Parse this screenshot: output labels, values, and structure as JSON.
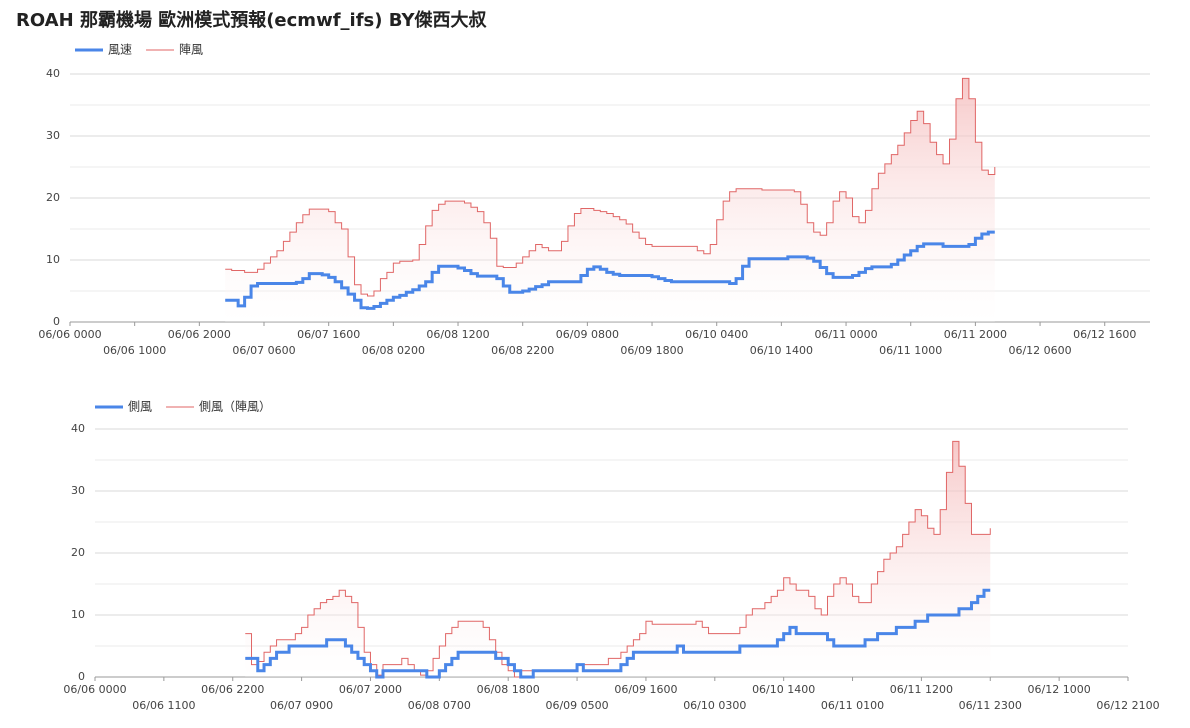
{
  "chart_data": [
    {
      "type": "step",
      "title": "ROAH 那霸機場 歐洲模式預報(ecmwf_ifs) BY傑西大叔",
      "x": [
        "06/07 0000",
        "06/07 0100",
        "06/07 0200",
        "06/07 0300",
        "06/07 0400",
        "06/07 0500",
        "06/07 0600",
        "06/07 0700",
        "06/07 0800",
        "06/07 0900",
        "06/07 1000",
        "06/07 1100",
        "06/07 1200",
        "06/07 1300",
        "06/07 1400",
        "06/07 1500",
        "06/07 1600",
        "06/07 1700",
        "06/07 1800",
        "06/07 1900",
        "06/07 2000",
        "06/07 2100",
        "06/07 2200",
        "06/07 2300",
        "06/08 0000",
        "06/08 0100",
        "06/08 0200",
        "06/08 0300",
        "06/08 0400",
        "06/08 0500",
        "06/08 0600",
        "06/08 0700",
        "06/08 0800",
        "06/08 0900",
        "06/08 1000",
        "06/08 1100",
        "06/08 1200",
        "06/08 1300",
        "06/08 1400",
        "06/08 1500",
        "06/08 1600",
        "06/08 1700",
        "06/08 1800",
        "06/08 1900",
        "06/08 2000",
        "06/08 2100",
        "06/08 2200",
        "06/08 2300",
        "06/09 0000",
        "06/09 0100",
        "06/09 0200",
        "06/09 0300",
        "06/09 0400",
        "06/09 0500",
        "06/09 0600",
        "06/09 0700",
        "06/09 0800",
        "06/09 0900",
        "06/09 1000",
        "06/09 1100",
        "06/09 1200",
        "06/09 1300",
        "06/09 1400",
        "06/09 1500",
        "06/09 1600",
        "06/09 1700",
        "06/09 1800",
        "06/09 1900",
        "06/09 2000",
        "06/09 2100",
        "06/09 2200",
        "06/09 2300",
        "06/10 0000",
        "06/10 0100",
        "06/10 0200",
        "06/10 0300",
        "06/10 0400",
        "06/10 0500",
        "06/10 0600",
        "06/10 0700",
        "06/10 0800",
        "06/10 0900",
        "06/10 1000",
        "06/10 1100",
        "06/10 1200",
        "06/10 1300",
        "06/10 1400",
        "06/10 1500",
        "06/10 1600",
        "06/10 1700",
        "06/10 1800",
        "06/10 1900",
        "06/10 2000",
        "06/10 2100",
        "06/10 2200",
        "06/10 2300",
        "06/11 0000",
        "06/11 0100",
        "06/11 0200",
        "06/11 0300",
        "06/11 0400",
        "06/11 0500",
        "06/11 0600",
        "06/11 0700",
        "06/11 0800",
        "06/11 0900",
        "06/11 1000",
        "06/11 1100",
        "06/11 1200",
        "06/11 1300",
        "06/11 1400",
        "06/11 1500",
        "06/11 1600",
        "06/11 1700",
        "06/11 1800",
        "06/11 1900",
        "06/11 2000",
        "06/11 2100",
        "06/11 2200",
        "06/11 2300"
      ],
      "series": [
        {
          "name": "風速",
          "color": "#4a86e8",
          "values": [
            3.5,
            3.5,
            2.6,
            4,
            5.8,
            6.2,
            6.2,
            6.2,
            6.2,
            6.2,
            6.2,
            6.4,
            7,
            7.8,
            7.8,
            7.6,
            7.2,
            6.5,
            5.5,
            4.5,
            3.5,
            2.3,
            2.2,
            2.5,
            3,
            3.5,
            4,
            4.3,
            4.8,
            5.2,
            5.8,
            6.5,
            8,
            9,
            9,
            9,
            8.7,
            8.3,
            7.8,
            7.4,
            7.4,
            7.4,
            7,
            5.8,
            4.8,
            4.8,
            5,
            5.3,
            5.7,
            6,
            6.5,
            6.5,
            6.5,
            6.5,
            6.5,
            7.5,
            8.5,
            8.9,
            8.5,
            8,
            7.7,
            7.5,
            7.5,
            7.5,
            7.5,
            7.5,
            7.3,
            7,
            6.7,
            6.5,
            6.5,
            6.5,
            6.5,
            6.5,
            6.5,
            6.5,
            6.5,
            6.5,
            6.2,
            7,
            9,
            10.2,
            10.2,
            10.2,
            10.2,
            10.2,
            10.2,
            10.5,
            10.5,
            10.5,
            10.3,
            9.8,
            8.8,
            7.8,
            7.2,
            7.2,
            7.2,
            7.5,
            8,
            8.6,
            8.9,
            8.9,
            8.9,
            9.3,
            10,
            10.8,
            11.5,
            12.2,
            12.6,
            12.6,
            12.6,
            12.2,
            12.2,
            12.2,
            12.2,
            12.5,
            13.5,
            14.2,
            14.5,
            14.5
          ]
        },
        {
          "name": "陣風",
          "color": "#e06666",
          "values": [
            8.5,
            8.3,
            8.3,
            8,
            8,
            8.5,
            9.5,
            10.5,
            11.5,
            13,
            14.5,
            16,
            17.3,
            18.2,
            18.2,
            18.2,
            17.8,
            16,
            15,
            10.5,
            6,
            4.5,
            4.2,
            5,
            7,
            8,
            9.5,
            9.8,
            9.8,
            10,
            12.5,
            15.5,
            18,
            19,
            19.5,
            19.5,
            19.5,
            19.2,
            18.5,
            17.8,
            16,
            13.5,
            9,
            8.8,
            8.8,
            9.5,
            10.5,
            11.5,
            12.5,
            12,
            11.5,
            11.5,
            13,
            15.5,
            17.5,
            18.3,
            18.3,
            18,
            17.8,
            17.5,
            17,
            16.5,
            15.8,
            14.5,
            13.5,
            12.5,
            12.2,
            12.2,
            12.2,
            12.2,
            12.2,
            12.2,
            12.2,
            11.5,
            11,
            12.5,
            16.5,
            19.5,
            21,
            21.5,
            21.5,
            21.5,
            21.5,
            21.3,
            21.3,
            21.3,
            21.3,
            21.3,
            21,
            19,
            16,
            14.5,
            14,
            16,
            19.5,
            21,
            20,
            17,
            16,
            18,
            21.5,
            24,
            25.5,
            27,
            28.5,
            30.5,
            32.5,
            34,
            32,
            29,
            27,
            25.5,
            29.5,
            36,
            39.3,
            36,
            29,
            24.5,
            23.8,
            25
          ]
        }
      ],
      "xlim": [
        "06/06 0000",
        "06/12 2300"
      ],
      "xticks": [
        "06/06 0000",
        "06/06 1000",
        "06/06 2000",
        "06/07 0600",
        "06/07 1600",
        "06/08 0200",
        "06/08 1200",
        "06/08 2200",
        "06/09 0800",
        "06/09 1800",
        "06/10 0400",
        "06/10 1400",
        "06/11 0000",
        "06/11 1000",
        "06/11 2000",
        "06/12 0600",
        "06/12 1600"
      ],
      "ylim": [
        0,
        40
      ],
      "yticks": [
        0,
        10,
        20,
        30,
        40
      ],
      "yminor": [
        5,
        15,
        25,
        35
      ],
      "grid": true,
      "legend": "top-left"
    },
    {
      "type": "step",
      "x": [
        "06/07 0000",
        "06/07 0100",
        "06/07 0200",
        "06/07 0300",
        "06/07 0400",
        "06/07 0500",
        "06/07 0600",
        "06/07 0700",
        "06/07 0800",
        "06/07 0900",
        "06/07 1000",
        "06/07 1100",
        "06/07 1200",
        "06/07 1300",
        "06/07 1400",
        "06/07 1500",
        "06/07 1600",
        "06/07 1700",
        "06/07 1800",
        "06/07 1900",
        "06/07 2000",
        "06/07 2100",
        "06/07 2200",
        "06/07 2300",
        "06/08 0000",
        "06/08 0100",
        "06/08 0200",
        "06/08 0300",
        "06/08 0400",
        "06/08 0500",
        "06/08 0600",
        "06/08 0700",
        "06/08 0800",
        "06/08 0900",
        "06/08 1000",
        "06/08 1100",
        "06/08 1200",
        "06/08 1300",
        "06/08 1400",
        "06/08 1500",
        "06/08 1600",
        "06/08 1700",
        "06/08 1800",
        "06/08 1900",
        "06/08 2000",
        "06/08 2100",
        "06/08 2200",
        "06/08 2300",
        "06/09 0000",
        "06/09 0100",
        "06/09 0200",
        "06/09 0300",
        "06/09 0400",
        "06/09 0500",
        "06/09 0600",
        "06/09 0700",
        "06/09 0800",
        "06/09 0900",
        "06/09 1000",
        "06/09 1100",
        "06/09 1200",
        "06/09 1300",
        "06/09 1400",
        "06/09 1500",
        "06/09 1600",
        "06/09 1700",
        "06/09 1800",
        "06/09 1900",
        "06/09 2000",
        "06/09 2100",
        "06/09 2200",
        "06/09 2300",
        "06/10 0000",
        "06/10 0100",
        "06/10 0200",
        "06/10 0300",
        "06/10 0400",
        "06/10 0500",
        "06/10 0600",
        "06/10 0700",
        "06/10 0800",
        "06/10 0900",
        "06/10 1000",
        "06/10 1100",
        "06/10 1200",
        "06/10 1300",
        "06/10 1400",
        "06/10 1500",
        "06/10 1600",
        "06/10 1700",
        "06/10 1800",
        "06/10 1900",
        "06/10 2000",
        "06/10 2100",
        "06/10 2200",
        "06/10 2300",
        "06/11 0000",
        "06/11 0100",
        "06/11 0200",
        "06/11 0300",
        "06/11 0400",
        "06/11 0500",
        "06/11 0600",
        "06/11 0700",
        "06/11 0800",
        "06/11 0900",
        "06/11 1000",
        "06/11 1100",
        "06/11 1200",
        "06/11 1300",
        "06/11 1400",
        "06/11 1500",
        "06/11 1600",
        "06/11 1700",
        "06/11 1800",
        "06/11 1900",
        "06/11 2000",
        "06/11 2100",
        "06/11 2200",
        "06/11 2300"
      ],
      "series": [
        {
          "name": "側風",
          "color": "#4a86e8",
          "values": [
            3,
            3,
            1,
            2,
            3,
            4,
            4,
            5,
            5,
            5,
            5,
            5,
            5,
            6,
            6,
            6,
            5,
            4,
            3,
            2,
            1,
            0,
            1,
            1,
            1,
            1,
            1,
            1,
            1,
            0,
            0,
            1,
            2,
            3,
            4,
            4,
            4,
            4,
            4,
            4,
            3,
            3,
            2,
            1,
            0,
            0,
            1,
            1,
            1,
            1,
            1,
            1,
            1,
            2,
            1,
            1,
            1,
            1,
            1,
            1,
            2,
            3,
            4,
            4,
            4,
            4,
            4,
            4,
            4,
            5,
            4,
            4,
            4,
            4,
            4,
            4,
            4,
            4,
            4,
            5,
            5,
            5,
            5,
            5,
            5,
            6,
            7,
            8,
            7,
            7,
            7,
            7,
            7,
            6,
            5,
            5,
            5,
            5,
            5,
            6,
            6,
            7,
            7,
            7,
            8,
            8,
            8,
            9,
            9,
            10,
            10,
            10,
            10,
            10,
            11,
            11,
            12,
            13,
            14,
            14
          ]
        },
        {
          "name": "側風（陣風）",
          "color": "#e06666",
          "values": [
            7,
            2,
            2.5,
            4,
            5,
            6,
            6,
            6,
            7,
            8,
            10,
            11,
            12,
            12.5,
            13,
            14,
            13,
            12,
            8,
            4,
            2,
            0.3,
            2,
            2,
            2,
            3,
            2,
            1,
            0.3,
            1,
            3,
            5,
            7,
            8,
            9,
            9,
            9,
            9,
            8,
            6,
            4,
            2,
            1,
            0,
            1,
            1,
            1,
            1,
            1,
            1,
            1,
            1,
            1,
            2,
            2,
            2,
            2,
            2,
            3,
            3,
            4,
            5,
            6,
            7,
            9,
            8.5,
            8.5,
            8.5,
            8.5,
            8.5,
            8.5,
            8.5,
            9,
            8,
            7,
            7,
            7,
            7,
            7,
            8,
            10,
            11,
            11,
            12,
            13,
            14,
            16,
            15,
            14,
            14,
            13,
            11,
            10,
            13,
            15,
            16,
            15,
            13,
            12,
            12,
            15,
            17,
            19,
            20,
            21,
            23,
            25,
            27,
            26,
            24,
            23,
            27,
            33,
            38,
            34,
            28,
            23,
            23,
            23,
            24
          ]
        }
      ],
      "xlim": [
        "06/06 0000",
        "06/12 2100"
      ],
      "xticks": [
        "06/06 0000",
        "06/06 1100",
        "06/06 2200",
        "06/07 0900",
        "06/07 2000",
        "06/08 0700",
        "06/08 1800",
        "06/09 0500",
        "06/09 1600",
        "06/10 0300",
        "06/10 1400",
        "06/11 0100",
        "06/11 1200",
        "06/11 2300",
        "06/12 1000",
        "06/12 2100"
      ],
      "ylim": [
        0,
        40
      ],
      "yticks": [
        0,
        10,
        20,
        30,
        40
      ],
      "yminor": [
        5,
        15,
        25,
        35
      ],
      "grid": true,
      "legend": "top-left"
    }
  ]
}
